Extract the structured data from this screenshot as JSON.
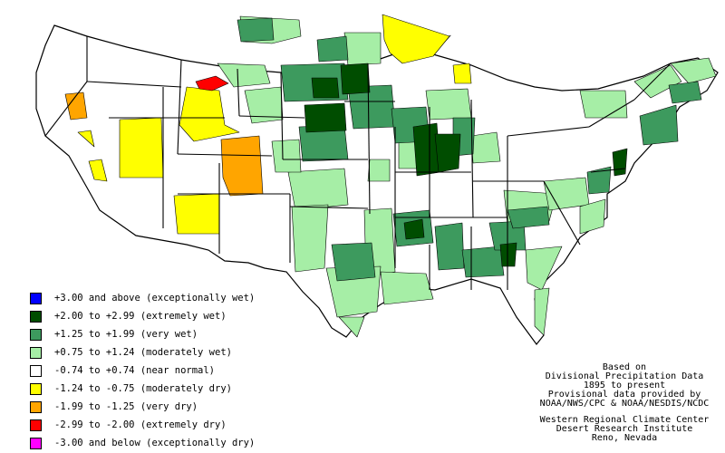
{
  "colors": {
    "exceptionally_wet": "#0000ff",
    "extremely_wet": "#004d00",
    "very_wet": "#3d9a5e",
    "moderately_wet": "#a6eea6",
    "near_normal": "#ffffff",
    "moderately_dry": "#ffff00",
    "very_dry": "#ffa500",
    "extremely_dry": "#ff0000",
    "exceptionally_dry": "#ff00ff"
  },
  "legend": [
    {
      "label": "+3.00 and above (exceptionally wet)",
      "color": "#0000ff"
    },
    {
      "label": "+2.00 to +2.99 (extremely wet)",
      "color": "#004d00"
    },
    {
      "label": "+1.25 to +1.99 (very wet)",
      "color": "#3d9a5e"
    },
    {
      "label": "+0.75 to +1.24 (moderately wet)",
      "color": "#a6eea6"
    },
    {
      "label": "-0.74 to +0.74 (near normal)",
      "color": "#ffffff"
    },
    {
      "label": "-1.24 to -0.75 (moderately dry)",
      "color": "#ffff00"
    },
    {
      "label": "-1.99 to -1.25 (very dry)",
      "color": "#ffa500"
    },
    {
      "label": "-2.99 to -2.00 (extremely dry)",
      "color": "#ff0000"
    },
    {
      "label": "-3.00 and below (exceptionally dry)",
      "color": "#ff00ff"
    }
  ],
  "credits": {
    "line1": "Based on",
    "line2": "Divisional Precipitation Data",
    "line3": "1895 to present",
    "line4": "Provisional data provided by",
    "line5": "NOAA/NWS/CPC & NOAA/NESDIS/NCDC",
    "line6": "Western Regional Climate Center",
    "line7": "Desert Research Institute",
    "line8": "Reno, Nevada"
  }
}
